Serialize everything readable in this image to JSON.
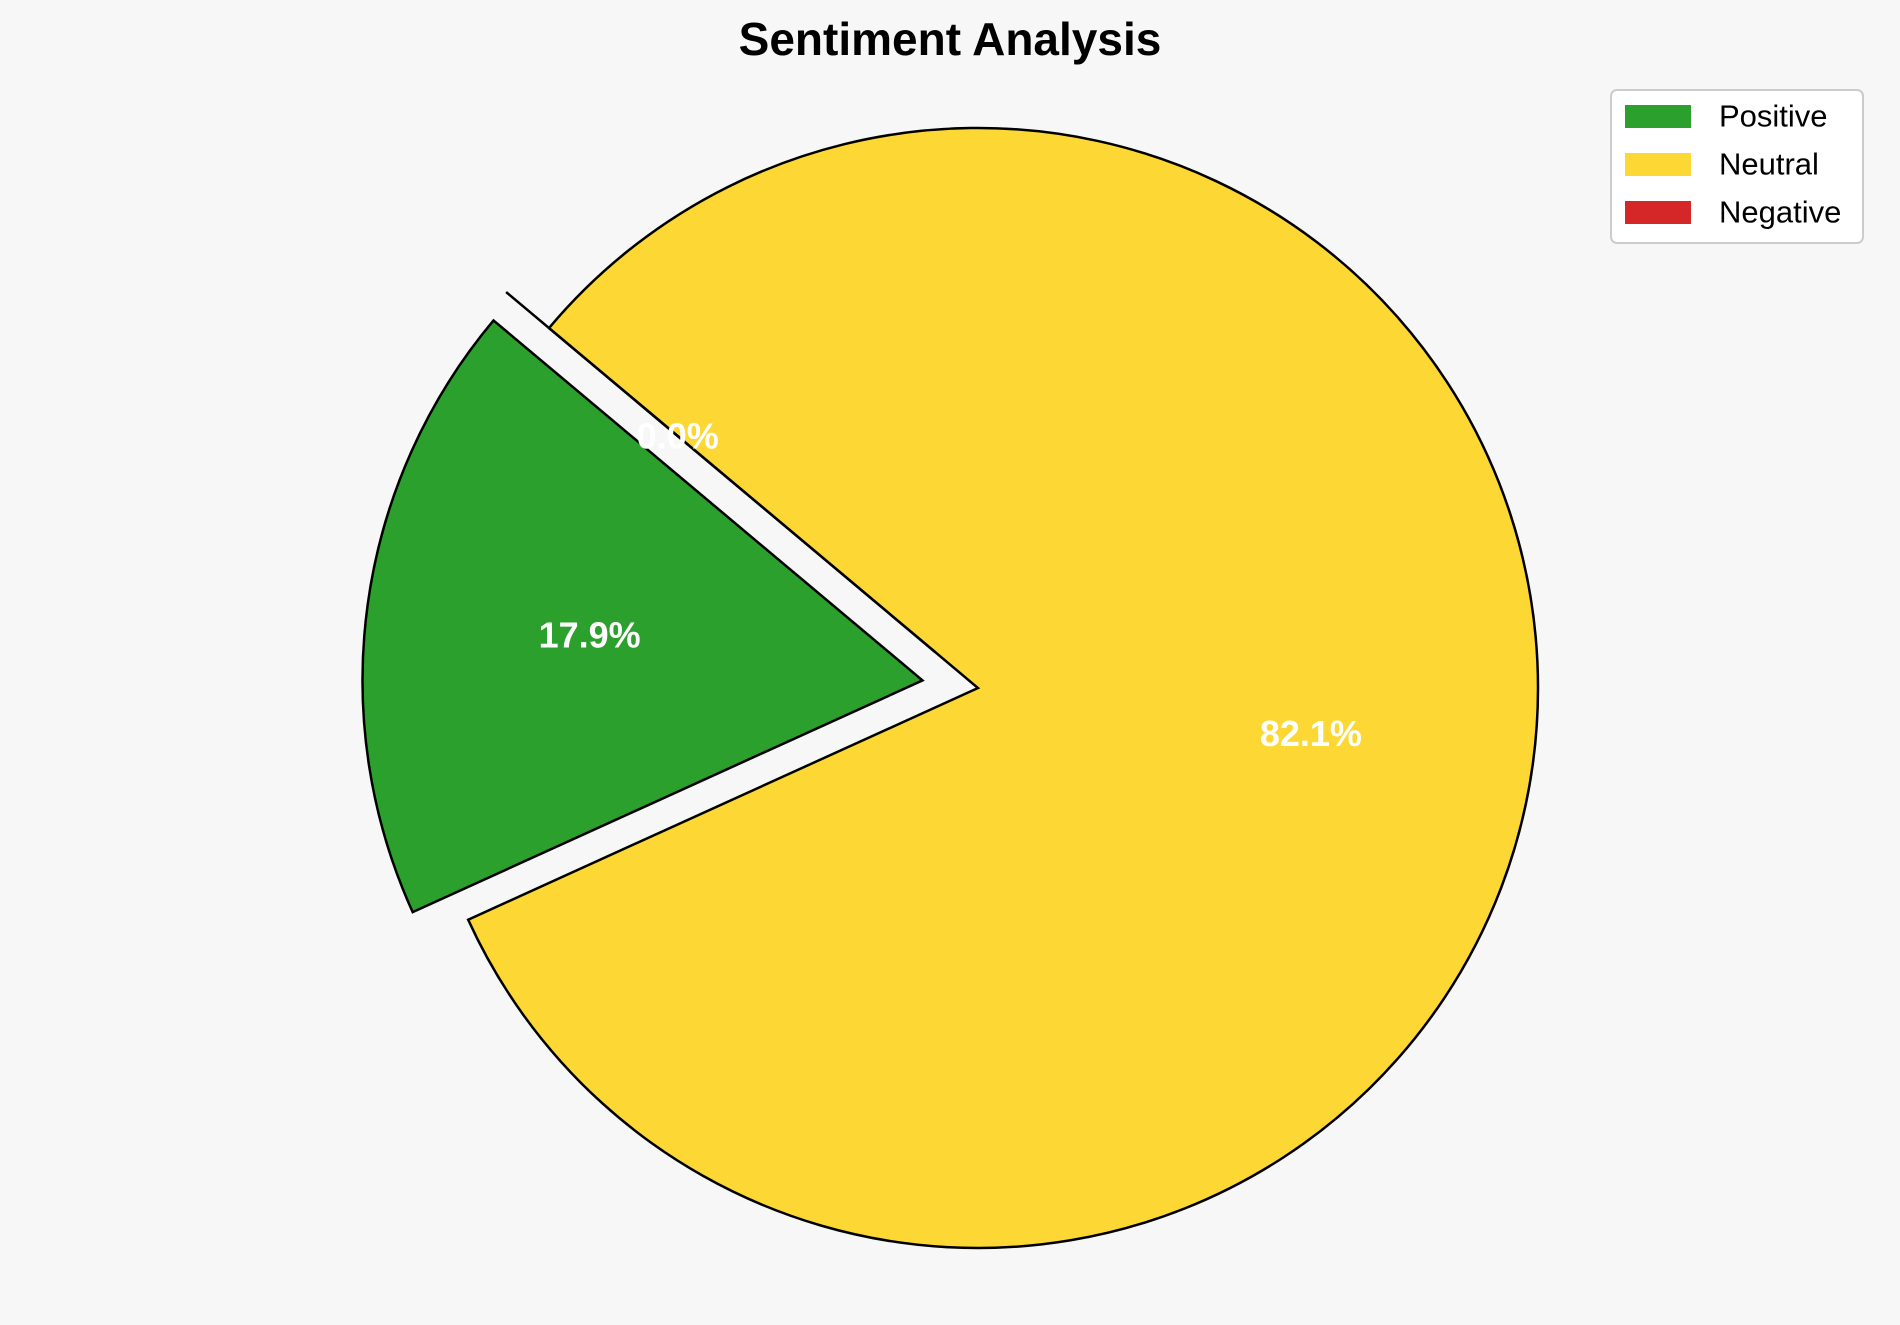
{
  "chart_data": {
    "type": "pie",
    "title": "Sentiment Analysis",
    "categories": [
      "Positive",
      "Neutral",
      "Negative"
    ],
    "values": [
      17.9,
      82.1,
      0.0
    ],
    "labels": [
      "17.9%",
      "82.1%",
      "0.0%"
    ],
    "colors": [
      "#2ca02c",
      "#fdd835",
      "#d62728"
    ],
    "edge_color": "#000000",
    "exploded": [
      true,
      false,
      true
    ],
    "start_angle_deg": 140,
    "direction": "counterclockwise",
    "legend": {
      "placement": "top-right",
      "entries": [
        "Positive",
        "Neutral",
        "Negative"
      ]
    }
  }
}
